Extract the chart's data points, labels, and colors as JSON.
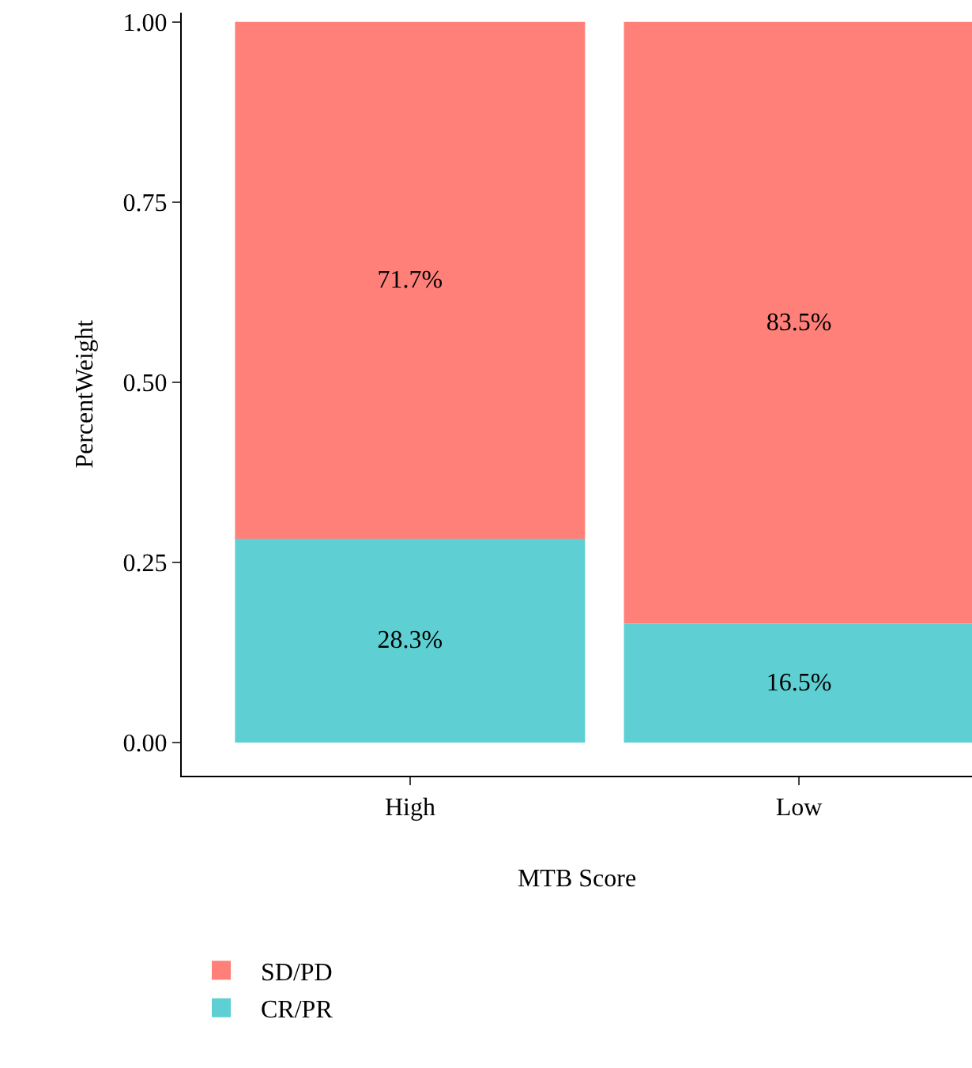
{
  "chart_data": {
    "type": "bar",
    "stacked": true,
    "xlabel": "MTB Score",
    "ylabel": "PercentWeight",
    "categories": [
      "High",
      "Low"
    ],
    "series": [
      {
        "name": "CR/PR",
        "color": "#5ecfd2",
        "values": [
          0.283,
          0.165
        ],
        "value_labels": [
          "28.3%",
          "16.5%"
        ]
      },
      {
        "name": "SD/PD",
        "color": "#ff8078",
        "values": [
          0.717,
          0.835
        ],
        "value_labels": [
          "71.7%",
          "83.5%"
        ]
      }
    ],
    "ylim": [
      -0.046,
      1.013
    ],
    "yticks": [
      {
        "value": 0,
        "label": "0.00"
      },
      {
        "value": 0.25,
        "label": "0.25"
      },
      {
        "value": 0.5,
        "label": "0.50"
      },
      {
        "value": 0.75,
        "label": "0.75"
      },
      {
        "value": 1,
        "label": "1.00"
      }
    ],
    "grid": false,
    "legend": "bottom left"
  }
}
